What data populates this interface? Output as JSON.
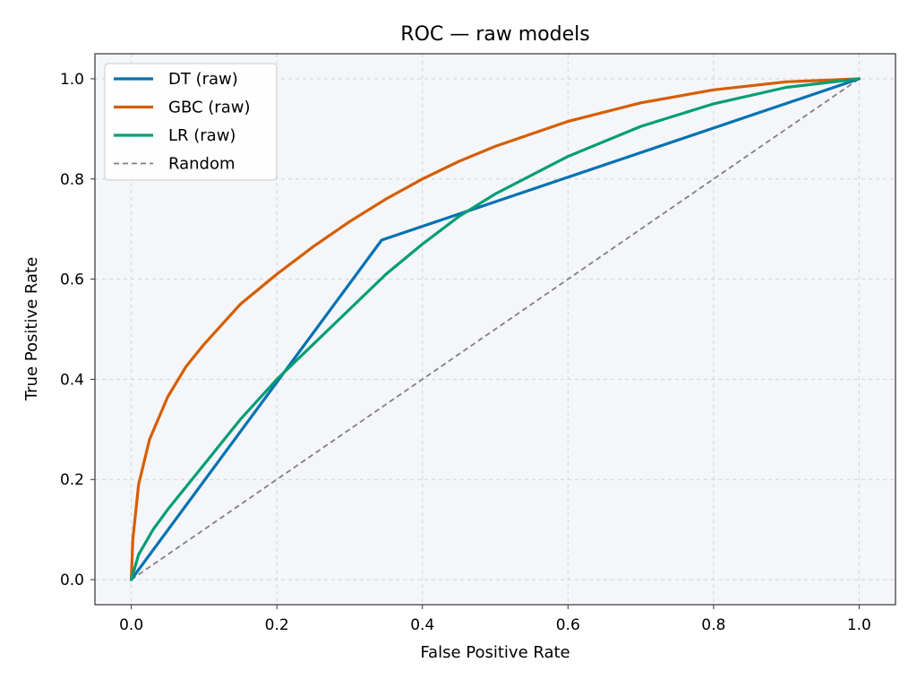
{
  "chart_data": {
    "type": "line",
    "title": "ROC — raw models",
    "xlabel": "False Positive Rate",
    "ylabel": "True Positive Rate",
    "xlim": [
      -0.05,
      1.05
    ],
    "ylim": [
      -0.05,
      1.05
    ],
    "xticks": [
      0.0,
      0.2,
      0.4,
      0.6,
      0.8,
      1.0
    ],
    "yticks": [
      0.0,
      0.2,
      0.4,
      0.6,
      0.8,
      1.0
    ],
    "xtick_labels": [
      "0.0",
      "0.2",
      "0.4",
      "0.6",
      "0.8",
      "1.0"
    ],
    "ytick_labels": [
      "0.0",
      "0.2",
      "0.4",
      "0.6",
      "0.8",
      "1.0"
    ],
    "grid": true,
    "legend_position": "top-left",
    "background_color": "#f5f6fa",
    "series": [
      {
        "name": "DT (raw)",
        "color": "#0072b2",
        "style": "solid",
        "x": [
          0.0,
          0.344,
          1.0
        ],
        "y": [
          0.0,
          0.678,
          1.0
        ]
      },
      {
        "name": "GBC (raw)",
        "color": "#d55e00",
        "style": "solid",
        "x": [
          0.0,
          0.002,
          0.01,
          0.025,
          0.05,
          0.075,
          0.1,
          0.15,
          0.2,
          0.25,
          0.3,
          0.35,
          0.4,
          0.45,
          0.5,
          0.6,
          0.7,
          0.8,
          0.9,
          1.0
        ],
        "y": [
          0.0,
          0.08,
          0.19,
          0.28,
          0.365,
          0.425,
          0.47,
          0.55,
          0.61,
          0.665,
          0.715,
          0.76,
          0.8,
          0.835,
          0.865,
          0.915,
          0.952,
          0.978,
          0.994,
          1.0
        ]
      },
      {
        "name": "LR (raw)",
        "color": "#009e73",
        "style": "solid",
        "x": [
          0.0,
          0.01,
          0.03,
          0.05,
          0.1,
          0.15,
          0.2,
          0.25,
          0.3,
          0.35,
          0.4,
          0.45,
          0.5,
          0.6,
          0.7,
          0.8,
          0.9,
          1.0
        ],
        "y": [
          0.0,
          0.05,
          0.1,
          0.14,
          0.23,
          0.32,
          0.4,
          0.47,
          0.54,
          0.61,
          0.67,
          0.725,
          0.77,
          0.845,
          0.905,
          0.95,
          0.983,
          1.0
        ]
      },
      {
        "name": "Random",
        "color": "#808080",
        "style": "dashed",
        "x": [
          0.0,
          1.0
        ],
        "y": [
          0.0,
          1.0
        ]
      }
    ]
  }
}
